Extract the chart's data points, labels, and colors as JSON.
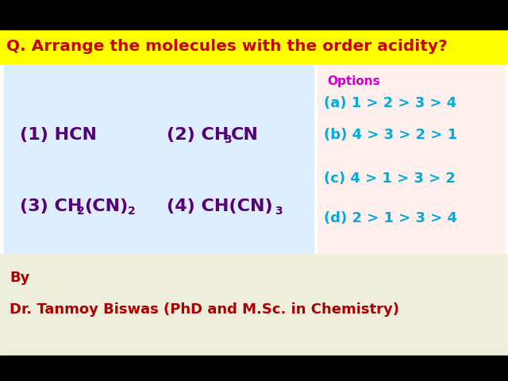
{
  "title": "Q. Arrange the molecules with the order acidity?",
  "title_bg": "#FFFF00",
  "title_color": "#CC0000",
  "main_bg": "#FFFFFF",
  "left_panel_bg": "#DDEEFF",
  "right_panel_bg": "#FFF0EE",
  "bottom_panel_bg": "#EEEEDD",
  "compound_color": "#550077",
  "options_label": "Options",
  "options_label_color": "#CC00CC",
  "option_a": "(a) 1 > 2 > 3 > 4",
  "option_b": "(b) 4 > 3 > 2 > 1",
  "option_c": "(c) 4 > 1 > 3 > 2",
  "option_d": "(d) 2 > 1 > 3 > 4",
  "options_color": "#00AADD",
  "by_text": "By",
  "author_text": "Dr. Tanmoy Biswas (PhD and M.Sc. in Chemistry)",
  "author_color": "#AA0000",
  "figsize": [
    6.4,
    4.8
  ],
  "dpi": 100
}
